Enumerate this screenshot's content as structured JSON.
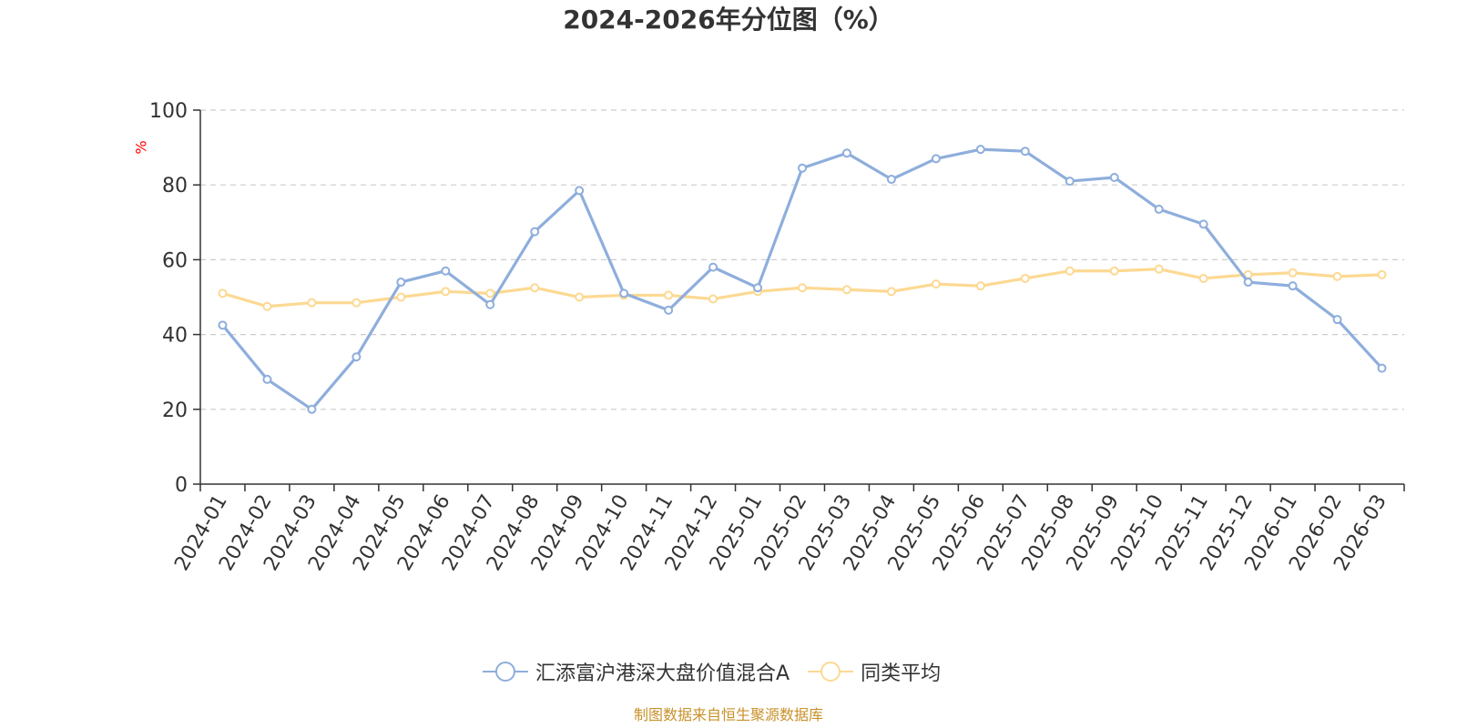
{
  "chart_data": {
    "type": "line",
    "title": "2024-2026年分位图（%）",
    "ylabel": "%",
    "ylim": [
      0,
      100
    ],
    "yticks": [
      0,
      20,
      40,
      60,
      80,
      100
    ],
    "grid": true,
    "legend_position": "bottom",
    "categories": [
      "2024-01",
      "2024-02",
      "2024-03",
      "2024-04",
      "2024-05",
      "2024-06",
      "2024-07",
      "2024-08",
      "2024-09",
      "2024-10",
      "2024-11",
      "2024-12",
      "2025-01",
      "2025-02",
      "2025-03",
      "2025-04",
      "2025-05",
      "2025-06",
      "2025-07",
      "2025-08",
      "2025-09",
      "2025-10",
      "2025-11",
      "2025-12",
      "2026-01",
      "2026-02",
      "2026-03"
    ],
    "series": [
      {
        "name": "汇添富沪港深大盘价值混合A",
        "color": "#8eaedc",
        "values": [
          42.5,
          28,
          20,
          34,
          54,
          57,
          48,
          67.5,
          78.5,
          51,
          46.5,
          58,
          52.5,
          84.5,
          88.5,
          81.5,
          87,
          89.5,
          89,
          81,
          82,
          73.5,
          69.5,
          54,
          53,
          44,
          31
        ]
      },
      {
        "name": "同类平均",
        "color": "#fcd992",
        "values": [
          51,
          47.5,
          48.5,
          48.5,
          50,
          51.5,
          51,
          52.5,
          50,
          50.5,
          50.5,
          49.5,
          51.5,
          52.5,
          52,
          51.5,
          53.5,
          53,
          55,
          57,
          57,
          57.5,
          55,
          56,
          56.5,
          55.5,
          56
        ]
      }
    ]
  },
  "source_note": "制图数据来自恒生聚源数据库"
}
